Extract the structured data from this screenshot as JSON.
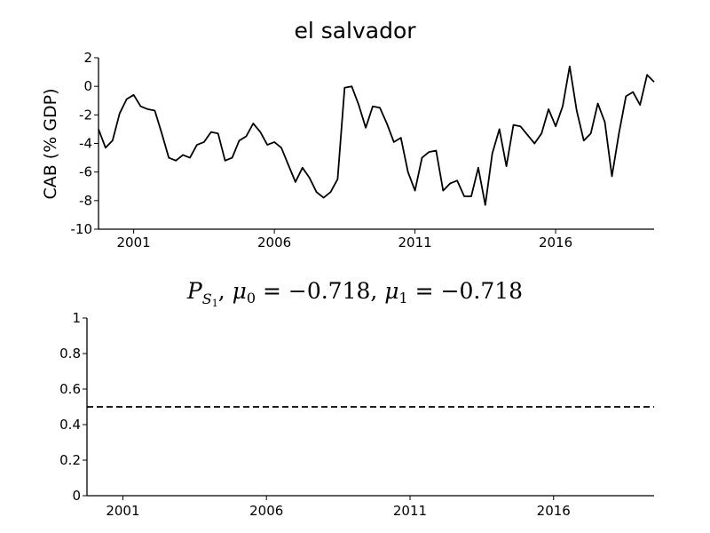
{
  "chart_data": [
    {
      "type": "line",
      "title": "el salvador",
      "ylabel": "CAB (% GDP)",
      "xlabel": "",
      "xlim": [
        1999.75,
        2019.5
      ],
      "ylim": [
        -10,
        2
      ],
      "xticks": [
        2001,
        2006,
        2011,
        2016
      ],
      "xtick_labels": [
        "2001",
        "2006",
        "2011",
        "2016"
      ],
      "yticks": [
        -10,
        -8,
        -6,
        -4,
        -2,
        0,
        2
      ],
      "ytick_labels": [
        "-10",
        "-8",
        "-6",
        "-4",
        "-2",
        "0",
        "2"
      ],
      "grid": false,
      "series": [
        {
          "x": [
            1999.75,
            2000.0,
            2000.25,
            2000.5,
            2000.75,
            2001.0,
            2001.25,
            2001.5,
            2001.75,
            2002.0,
            2002.25,
            2002.5,
            2002.75,
            2003.0,
            2003.25,
            2003.5,
            2003.75,
            2004.0,
            2004.25,
            2004.5,
            2004.75,
            2005.0,
            2005.25,
            2005.5,
            2005.75,
            2006.0,
            2006.25,
            2006.5,
            2006.75,
            2007.0,
            2007.25,
            2007.5,
            2007.75,
            2008.0,
            2008.25,
            2008.5,
            2008.75,
            2009.0,
            2009.25,
            2009.5,
            2009.75,
            2010.0,
            2010.25,
            2010.5,
            2010.75,
            2011.0,
            2011.25,
            2011.5,
            2011.75,
            2012.0,
            2012.25,
            2012.5,
            2012.75,
            2013.0,
            2013.25,
            2013.5,
            2013.75,
            2014.0,
            2014.25,
            2014.5,
            2014.75,
            2015.0,
            2015.25,
            2015.5,
            2015.75,
            2016.0,
            2016.25,
            2016.5,
            2016.75,
            2017.0,
            2017.25,
            2017.5,
            2017.75,
            2018.0,
            2018.25,
            2018.5,
            2018.75,
            2019.0,
            2019.25,
            2019.5
          ],
          "y": [
            -3.0,
            -4.3,
            -3.8,
            -1.9,
            -0.9,
            -0.6,
            -1.4,
            -1.6,
            -1.7,
            -3.3,
            -5.0,
            -5.2,
            -4.8,
            -5.0,
            -4.1,
            -3.9,
            -3.2,
            -3.3,
            -5.2,
            -5.0,
            -3.8,
            -3.5,
            -2.6,
            -3.2,
            -4.1,
            -3.9,
            -4.3,
            -5.5,
            -6.7,
            -5.7,
            -6.4,
            -7.4,
            -7.8,
            -7.4,
            -6.5,
            -0.1,
            -0.0,
            -1.3,
            -2.9,
            -1.4,
            -1.5,
            -2.6,
            -3.9,
            -3.6,
            -6.0,
            -7.3,
            -5.0,
            -4.6,
            -4.5,
            -7.3,
            -6.8,
            -6.6,
            -7.7,
            -7.7,
            -5.7,
            -8.3,
            -4.7,
            -3.0,
            -5.6,
            -2.7,
            -2.8,
            -3.4,
            -4.0,
            -3.3,
            -1.6,
            -2.8,
            -1.4,
            1.4,
            -1.7,
            -3.8,
            -3.3,
            -1.2,
            -2.5,
            -6.3,
            -3.3,
            -0.7,
            -0.4,
            -1.3,
            0.8,
            0.3
          ]
        }
      ]
    },
    {
      "type": "line",
      "title": "P_S1, μ0 = −0.718, μ1 = −0.718",
      "title_parts": {
        "p": "P",
        "s": "S",
        "one": "1",
        "mu": "μ",
        "zero": "0",
        "eq_val": " = −0.718, ",
        "eq_val_end": " = −0.718"
      },
      "xlabel": "",
      "ylabel": "",
      "xlim": [
        1999.75,
        2019.5
      ],
      "ylim": [
        0,
        1
      ],
      "xticks": [
        2001,
        2006,
        2011,
        2016
      ],
      "xtick_labels": [
        "2001",
        "2006",
        "2011",
        "2016"
      ],
      "yticks": [
        0,
        0.2,
        0.4,
        0.6,
        0.8,
        1
      ],
      "ytick_labels": [
        "0",
        "0.2",
        "0.4",
        "0.6",
        "0.8",
        "1"
      ],
      "grid": false,
      "series": [
        {
          "style": "dashed",
          "x": [
            1999.75,
            2019.5
          ],
          "y": [
            0.5,
            0.5
          ]
        }
      ]
    }
  ]
}
